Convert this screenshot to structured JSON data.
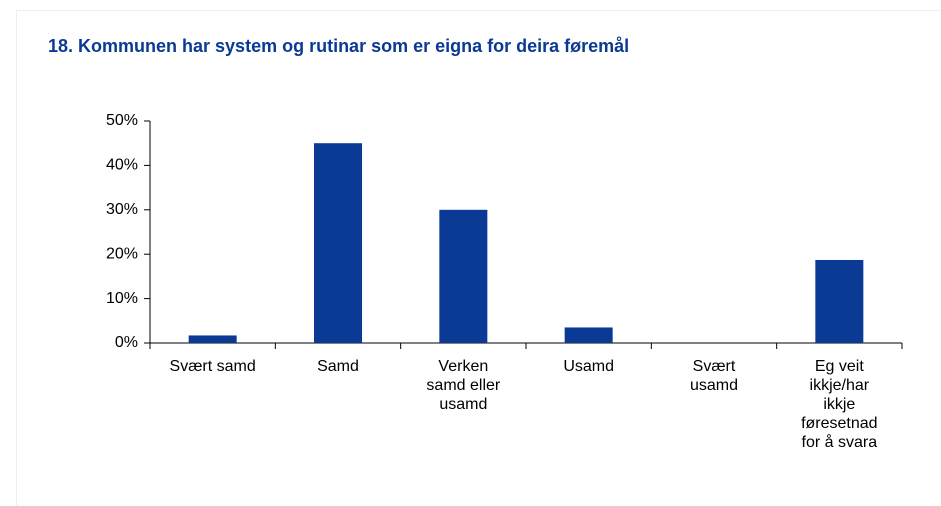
{
  "chart_data": {
    "type": "bar",
    "title": "18. Kommunen har system og rutinar som er eigna for deira føremål",
    "categories": [
      "Svært samd",
      "Samd",
      "Verken samd eller usamd",
      "Usamd",
      "Svært usamd",
      "Eg veit ikkje/har ikkje føresetnad for å svara"
    ],
    "values": [
      1.7,
      45,
      30,
      3.5,
      0,
      18.7
    ],
    "color": "#0b3a94",
    "ylim": [
      0,
      50
    ],
    "yticks": [
      {
        "value": 0,
        "label": "0%"
      },
      {
        "value": 10,
        "label": "10%"
      },
      {
        "value": 20,
        "label": "20%"
      },
      {
        "value": 30,
        "label": "30%"
      },
      {
        "value": 40,
        "label": "40%"
      },
      {
        "value": 50,
        "label": "50%"
      }
    ],
    "grid": false
  }
}
